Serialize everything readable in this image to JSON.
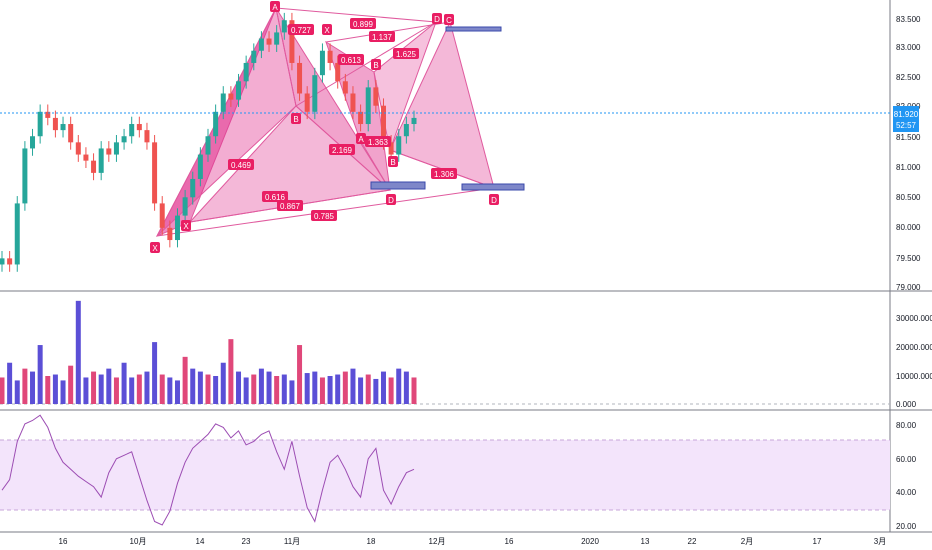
{
  "price_axis": {
    "ticks": [
      "83.500",
      "83.000",
      "82.500",
      "82.000",
      "81.500",
      "81.000",
      "80.500",
      "80.000",
      "79.500",
      "79.000"
    ],
    "current_price": "81.920",
    "countdown": "52:57"
  },
  "volume_axis": {
    "ticks": [
      "30000.000",
      "20000.000",
      "10000.000",
      "0.000"
    ]
  },
  "rsi_axis": {
    "ticks": [
      "80.00",
      "60.00",
      "40.00",
      "20.00"
    ]
  },
  "time_axis": {
    "ticks": [
      "16",
      "10月",
      "14",
      "23",
      "11月",
      "18",
      "12月",
      "16",
      "2020",
      "13",
      "22",
      "2月",
      "17",
      "3月"
    ]
  },
  "pattern_labels": {
    "points": [
      "A",
      "X",
      "B",
      "D",
      "C",
      "B",
      "A",
      "B",
      "D",
      "D",
      "X",
      "X"
    ],
    "ratios": [
      "0.727",
      "0.899",
      "1.137",
      "0.613",
      "1.625",
      "0.469",
      "2.169",
      "1.363",
      "1.306",
      "0.616",
      "0.867",
      "0.785"
    ]
  },
  "colors": {
    "pattern_fill": "#e0338f",
    "pattern_stroke": "#e05a9e",
    "label_bg": "#e91e63",
    "up_candle": "#26a69a",
    "down_candle": "#ef5350",
    "volume_up": "#5b4fd6",
    "volume_down": "#e0487a",
    "rsi_line": "#9c4db3",
    "rsi_band": "#f3e4fb",
    "price_line": "#2196f3",
    "target_box": "#7e87c9"
  },
  "chart_data": [
    {
      "type": "line",
      "title": "",
      "ylim": [
        79.0,
        83.7
      ],
      "x_tick_labels": [
        "16",
        "10月",
        "14",
        "23",
        "11月",
        "18",
        "12月",
        "16",
        "2020",
        "13",
        "22",
        "2月",
        "17",
        "3月"
      ],
      "y_tick_labels": [
        "83.500",
        "83.000",
        "82.500",
        "82.000",
        "81.500",
        "81.000",
        "80.500",
        "80.000",
        "79.500",
        "79.000"
      ],
      "series": [
        {
          "values": [
            79.6,
            79.5,
            80.5,
            81.4,
            81.6,
            82.0,
            81.9,
            81.7,
            81.8,
            81.5,
            81.3,
            81.2,
            81.0,
            81.4,
            81.3,
            81.5,
            81.6,
            81.8,
            81.7,
            81.5,
            80.5,
            80.1,
            79.9,
            80.3,
            80.6,
            80.9,
            81.3,
            81.6,
            82.0,
            82.3,
            82.2,
            82.5,
            82.8,
            83.0,
            83.2,
            83.1,
            83.3,
            83.5,
            82.8,
            82.3,
            82.0,
            82.6,
            83.0,
            82.8,
            82.5,
            82.3,
            82.0,
            81.8,
            82.4,
            82.1,
            81.5,
            81.3,
            81.6,
            81.8,
            81.9
          ]
        }
      ],
      "annotations": [
        "A",
        "X",
        "B",
        "D",
        "C",
        "0.727",
        "0.899",
        "1.137",
        "0.613",
        "1.625",
        "0.469",
        "2.169",
        "1.363",
        "1.306",
        "0.616",
        "0.867",
        "0.785"
      ]
    },
    {
      "type": "bar",
      "title": "",
      "ylim": [
        0,
        38000
      ],
      "y_tick_labels": [
        "30000.000",
        "20000.000",
        "10000.000",
        "0.000"
      ],
      "series": [
        {
          "values": [
            9000,
            14000,
            8000,
            12000,
            11000,
            20000,
            9500,
            10000,
            8000,
            13000,
            35000,
            9000,
            11000,
            10000,
            12000,
            9000,
            14000,
            9000,
            10000,
            11000,
            21000,
            10000,
            9000,
            8000,
            16000,
            12000,
            11000,
            10000,
            9500,
            14000,
            22000,
            11000,
            9000,
            10000,
            12000,
            11000,
            9500,
            10000,
            8000,
            20000,
            10500,
            11000,
            9000,
            9500,
            10000,
            11000,
            12000,
            9000,
            10000,
            8500,
            11000,
            9000,
            12000,
            11000,
            9000
          ]
        }
      ]
    },
    {
      "type": "line",
      "title": "",
      "ylim": [
        18,
        88
      ],
      "y_tick_labels": [
        "80.00",
        "60.00",
        "40.00",
        "20.00"
      ],
      "series": [
        {
          "values": [
            42,
            48,
            70,
            80,
            82,
            85,
            78,
            66,
            58,
            54,
            50,
            47,
            44,
            38,
            52,
            60,
            62,
            64,
            50,
            36,
            24,
            22,
            30,
            46,
            58,
            66,
            70,
            74,
            80,
            78,
            72,
            76,
            68,
            70,
            74,
            76,
            64,
            54,
            70,
            50,
            32,
            24,
            42,
            58,
            62,
            54,
            44,
            38,
            60,
            66,
            42,
            34,
            44,
            52,
            54
          ]
        }
      ]
    }
  ]
}
